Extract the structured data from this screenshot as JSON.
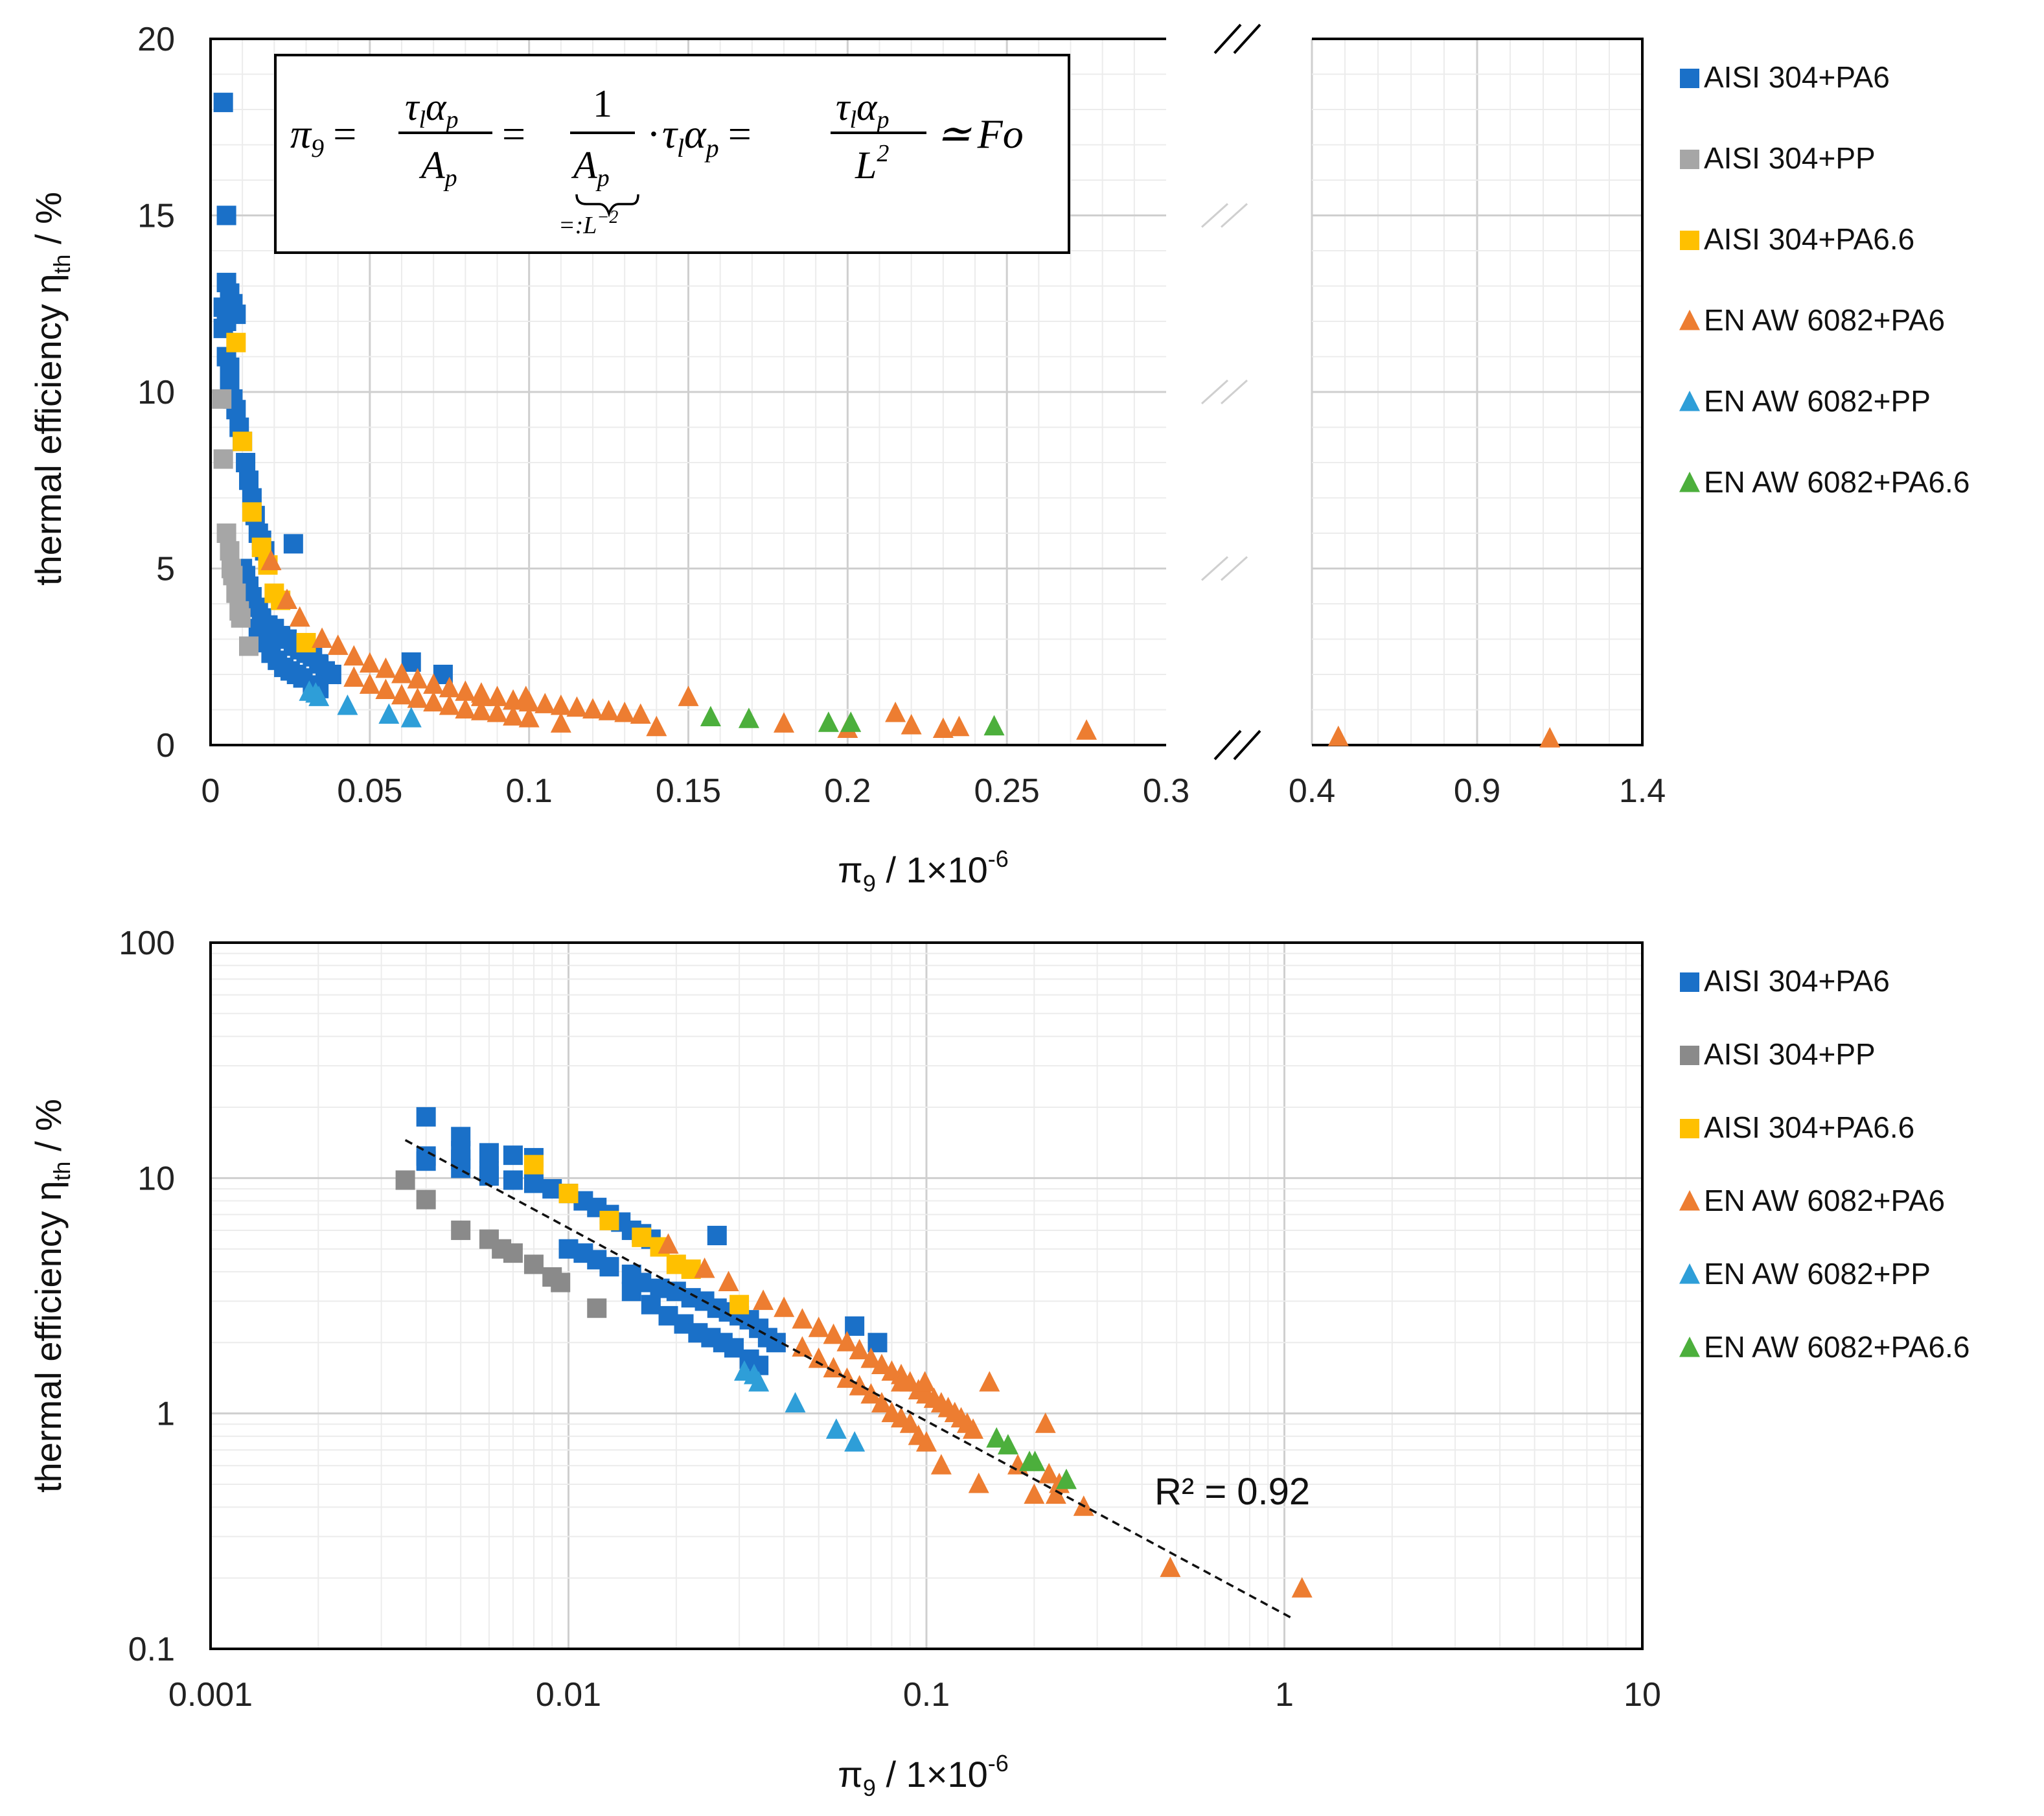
{
  "colors": {
    "AISI 304+PA6": "#1a70c8",
    "AISI 304+PP": "#8a8a8a",
    "AISI 304+PA6.6": "#ffc000",
    "EN AW 6082+PA6": "#ed7d31",
    "EN AW 6082+PP": "#2e9ed8",
    "EN AW 6082+PA6.6": "#4caf3c"
  },
  "colors_top_override": {
    "AISI 304+PP": "#a6a6a6"
  },
  "equation": {
    "lhs": "π",
    "lhs_sub": "9",
    "frac1_num": "τ",
    "frac1_num_sub": "l",
    "frac1_num2": "α",
    "frac1_num2_sub": "p",
    "frac1_den": "A",
    "frac1_den_sub": "p",
    "frac2_num": "1",
    "frac2_den": "A",
    "frac2_den_sub": "p",
    "brace_label": "=:L",
    "brace_label_sup": "−2",
    "mid_dot": "·",
    "mid": "τ",
    "mid_sub": "l",
    "mid2": "α",
    "mid2_sub": "p",
    "frac3_num": "τ",
    "frac3_num_sub": "l",
    "frac3_num2": "α",
    "frac3_num2_sub": "p",
    "frac3_den": "L",
    "frac3_den_sup": "2",
    "approx": "≃",
    "rhs": "Fo",
    "eq_sign": "="
  },
  "annotation_r2": "R² = 0.92",
  "chart_data": [
    {
      "type": "scatter",
      "panel": "top",
      "xlabel_main": "π",
      "xlabel_sub": "9",
      "xlabel_rest": " / 1×10",
      "xlabel_sup": "-6",
      "ylabel_main": "thermal efficiency η",
      "ylabel_sub": "th",
      "ylabel_rest": " / %",
      "xaxis": "broken linear",
      "x_segments": [
        [
          0,
          0.3
        ],
        [
          0.4,
          1.4
        ]
      ],
      "xticks": [
        "0",
        "0.05",
        "0.1",
        "0.15",
        "0.2",
        "0.25",
        "0.3",
        "0.4",
        "0.9",
        "1.4"
      ],
      "ylim": [
        0,
        20
      ],
      "yticks": [
        "0",
        "5",
        "10",
        "15",
        "20"
      ],
      "grid": true,
      "legend_position": "right",
      "legend": [
        "AISI 304+PA6",
        "AISI 304+PP",
        "AISI 304+PA6.6",
        "EN AW 6082+PA6",
        "EN AW 6082+PP",
        "EN AW 6082+PA6.6"
      ],
      "series": [
        {
          "name": "AISI 304+PA6",
          "marker": "square",
          "points": [
            [
              0.004,
              18.2
            ],
            [
              0.005,
              15.0
            ],
            [
              0.005,
              13.1
            ],
            [
              0.006,
              12.8
            ],
            [
              0.007,
              12.5
            ],
            [
              0.008,
              12.2
            ],
            [
              0.004,
              12.4
            ],
            [
              0.005,
              12.0
            ],
            [
              0.004,
              11.8
            ],
            [
              0.005,
              11.0
            ],
            [
              0.006,
              10.7
            ],
            [
              0.006,
              10.2
            ],
            [
              0.007,
              9.8
            ],
            [
              0.008,
              9.5
            ],
            [
              0.009,
              9.0
            ],
            [
              0.01,
              8.6
            ],
            [
              0.011,
              8.0
            ],
            [
              0.012,
              7.5
            ],
            [
              0.013,
              7.0
            ],
            [
              0.014,
              6.5
            ],
            [
              0.015,
              6.0
            ],
            [
              0.017,
              5.5
            ],
            [
              0.016,
              5.8
            ],
            [
              0.026,
              5.7
            ],
            [
              0.01,
              5.0
            ],
            [
              0.011,
              4.8
            ],
            [
              0.012,
              4.5
            ],
            [
              0.013,
              4.2
            ],
            [
              0.015,
              3.9
            ],
            [
              0.016,
              3.6
            ],
            [
              0.018,
              3.4
            ],
            [
              0.02,
              3.3
            ],
            [
              0.022,
              3.1
            ],
            [
              0.024,
              3.0
            ],
            [
              0.026,
              2.8
            ],
            [
              0.028,
              2.7
            ],
            [
              0.03,
              2.6
            ],
            [
              0.032,
              2.5
            ],
            [
              0.034,
              2.3
            ],
            [
              0.036,
              2.1
            ],
            [
              0.038,
              2.0
            ],
            [
              0.015,
              3.3
            ],
            [
              0.017,
              2.9
            ],
            [
              0.019,
              2.6
            ],
            [
              0.021,
              2.4
            ],
            [
              0.023,
              2.2
            ],
            [
              0.025,
              2.1
            ],
            [
              0.027,
              2.0
            ],
            [
              0.029,
              1.9
            ],
            [
              0.032,
              1.7
            ],
            [
              0.034,
              1.6
            ],
            [
              0.063,
              2.35
            ],
            [
              0.073,
              2.0
            ]
          ]
        },
        {
          "name": "AISI 304+PP",
          "marker": "square",
          "points": [
            [
              0.0035,
              9.8
            ],
            [
              0.004,
              8.1
            ],
            [
              0.005,
              6.0
            ],
            [
              0.006,
              5.5
            ],
            [
              0.0065,
              5.0
            ],
            [
              0.007,
              4.8
            ],
            [
              0.008,
              4.3
            ],
            [
              0.009,
              3.8
            ],
            [
              0.0095,
              3.6
            ],
            [
              0.012,
              2.8
            ]
          ]
        },
        {
          "name": "AISI 304+PA6.6",
          "marker": "square",
          "points": [
            [
              0.008,
              11.4
            ],
            [
              0.01,
              8.6
            ],
            [
              0.013,
              6.6
            ],
            [
              0.016,
              5.6
            ],
            [
              0.018,
              5.1
            ],
            [
              0.02,
              4.3
            ],
            [
              0.022,
              4.1
            ],
            [
              0.03,
              2.9
            ]
          ]
        },
        {
          "name": "EN AW 6082+PA6",
          "marker": "triangle",
          "points": [
            [
              0.019,
              5.2
            ],
            [
              0.024,
              4.1
            ],
            [
              0.028,
              3.6
            ],
            [
              0.035,
              3.0
            ],
            [
              0.04,
              2.8
            ],
            [
              0.045,
              2.5
            ],
            [
              0.05,
              2.3
            ],
            [
              0.055,
              2.15
            ],
            [
              0.06,
              2.0
            ],
            [
              0.065,
              1.85
            ],
            [
              0.07,
              1.7
            ],
            [
              0.075,
              1.6
            ],
            [
              0.08,
              1.5
            ],
            [
              0.085,
              1.45
            ],
            [
              0.09,
              1.35
            ],
            [
              0.095,
              1.25
            ],
            [
              0.1,
              1.2
            ],
            [
              0.105,
              1.15
            ],
            [
              0.11,
              1.1
            ],
            [
              0.115,
              1.05
            ],
            [
              0.12,
              1.0
            ],
            [
              0.125,
              0.95
            ],
            [
              0.13,
              0.9
            ],
            [
              0.135,
              0.85
            ],
            [
              0.045,
              1.9
            ],
            [
              0.05,
              1.7
            ],
            [
              0.055,
              1.55
            ],
            [
              0.06,
              1.4
            ],
            [
              0.065,
              1.3
            ],
            [
              0.07,
              1.2
            ],
            [
              0.075,
              1.1
            ],
            [
              0.08,
              1.0
            ],
            [
              0.085,
              0.95
            ],
            [
              0.09,
              0.9
            ],
            [
              0.095,
              0.8
            ],
            [
              0.1,
              0.75
            ],
            [
              0.085,
              1.35
            ],
            [
              0.099,
              1.35
            ],
            [
              0.15,
              1.35
            ],
            [
              0.11,
              0.6
            ],
            [
              0.14,
              0.5
            ],
            [
              0.18,
              0.6
            ],
            [
              0.215,
              0.9
            ],
            [
              0.2,
              0.45
            ],
            [
              0.22,
              0.55
            ],
            [
              0.235,
              0.5
            ],
            [
              0.23,
              0.45
            ],
            [
              0.275,
              0.4
            ],
            [
              0.48,
              0.22
            ],
            [
              1.12,
              0.18
            ]
          ]
        },
        {
          "name": "EN AW 6082+PP",
          "marker": "triangle",
          "points": [
            [
              0.031,
              1.5
            ],
            [
              0.033,
              1.45
            ],
            [
              0.034,
              1.35
            ],
            [
              0.043,
              1.1
            ],
            [
              0.056,
              0.85
            ],
            [
              0.063,
              0.75
            ]
          ]
        },
        {
          "name": "EN AW 6082+PA6.6",
          "marker": "triangle",
          "points": [
            [
              0.157,
              0.78
            ],
            [
              0.169,
              0.73
            ],
            [
              0.194,
              0.62
            ],
            [
              0.201,
              0.62
            ],
            [
              0.246,
              0.52
            ]
          ]
        }
      ]
    },
    {
      "type": "scatter",
      "panel": "bottom",
      "xlabel_main": "π",
      "xlabel_sub": "9",
      "xlabel_rest": " / 1×10",
      "xlabel_sup": "-6",
      "ylabel_main": "thermal efficiency η",
      "ylabel_sub": "th",
      "ylabel_rest": " / %",
      "xscale": "log",
      "yscale": "log",
      "xlim": [
        0.001,
        10
      ],
      "ylim": [
        0.1,
        100
      ],
      "xticks": [
        "0.001",
        "0.01",
        "0.1",
        "1",
        "10"
      ],
      "yticks": [
        "0.1",
        "1",
        "10",
        "100"
      ],
      "grid": true,
      "legend_position": "right",
      "legend": [
        "AISI 304+PA6",
        "AISI 304+PP",
        "AISI 304+PA6.6",
        "EN AW 6082+PA6",
        "EN AW 6082+PP",
        "EN AW 6082+PA6.6"
      ],
      "trendline": {
        "type": "power",
        "from": [
          0.0035,
          14.5
        ],
        "to": [
          1.05,
          0.135
        ],
        "r2_label": "R² = 0.92"
      }
    }
  ]
}
